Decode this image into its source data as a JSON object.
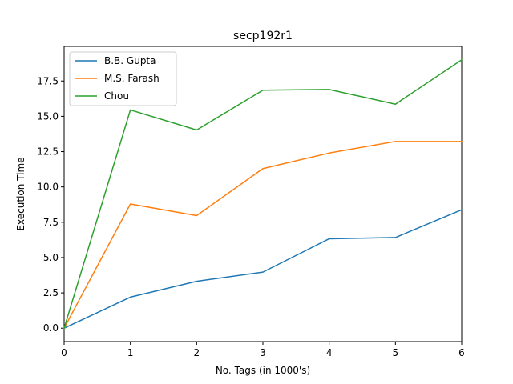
{
  "chart_data": {
    "type": "line",
    "title": "secp192r1",
    "xlabel": "No. Tags (in 1000's)",
    "ylabel": "Execution Time",
    "x": [
      0,
      1,
      2,
      3,
      4,
      5,
      6
    ],
    "xlim": [
      0,
      6
    ],
    "ylim": [
      -0.95,
      19.95
    ],
    "xticks": [
      0,
      1,
      2,
      3,
      4,
      5,
      6
    ],
    "xtick_labels": [
      "0",
      "1",
      "2",
      "3",
      "4",
      "5",
      "6"
    ],
    "yticks": [
      0,
      2.5,
      5,
      7.5,
      10,
      12.5,
      15,
      17.5
    ],
    "ytick_labels": [
      "0.0",
      "2.5",
      "5.0",
      "7.5",
      "10.0",
      "12.5",
      "15.0",
      "17.5"
    ],
    "grid": false,
    "legend_position": "upper-left",
    "series": [
      {
        "name": "B.B. Gupta",
        "color": "#1f77b4",
        "values": [
          0.0,
          2.2,
          3.32,
          3.97,
          6.33,
          6.42,
          8.38
        ]
      },
      {
        "name": "M.S. Farash",
        "color": "#ff7f0e",
        "values": [
          0.0,
          8.79,
          7.97,
          11.3,
          12.4,
          13.22,
          13.22
        ]
      },
      {
        "name": "Chou",
        "color": "#2ca02c",
        "values": [
          0.0,
          15.45,
          14.03,
          16.85,
          16.9,
          15.86,
          19.0
        ]
      }
    ]
  }
}
